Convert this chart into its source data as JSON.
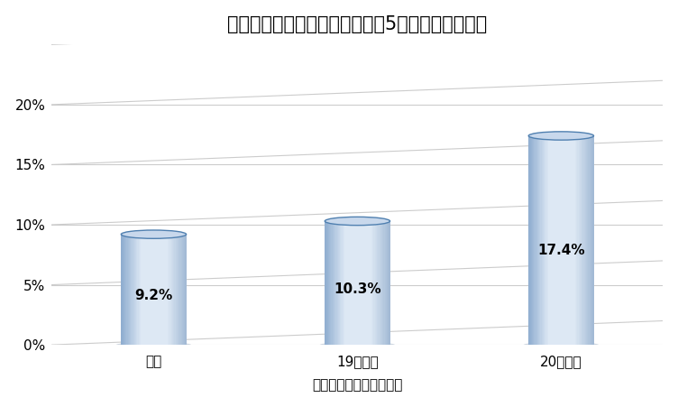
{
  "title": "塩酸リトドリン使用日数による5歳時の喘息有症率",
  "xlabel": "塩酸リトドリン使用日数",
  "categories": [
    "なし",
    "19日以下",
    "20日以上"
  ],
  "values": [
    9.2,
    10.3,
    17.4
  ],
  "labels": [
    "9.2%",
    "10.3%",
    "17.4%"
  ],
  "ylim": [
    0,
    25
  ],
  "yticks": [
    0,
    5,
    10,
    15,
    20
  ],
  "ytick_labels": [
    "0%",
    "5%",
    "10%",
    "15%",
    "20%"
  ],
  "background_color": "#ffffff",
  "plot_bg_color": "#ffffff",
  "grid_color": "#c8c8c8",
  "title_fontsize": 15,
  "label_fontsize": 11,
  "tick_fontsize": 11,
  "xlabel_fontsize": 11,
  "bar_width": 0.32,
  "cyl_edge_color": "#5588bb",
  "cyl_light": "#dde8f4",
  "cyl_mid": "#b8cfe8",
  "cyl_dark": "#90aed0",
  "cyl_top_face": "#c8d8ec",
  "cyl_top_edge": "#5588bb",
  "cyl_bottom_shadow": "#9ab0c8"
}
